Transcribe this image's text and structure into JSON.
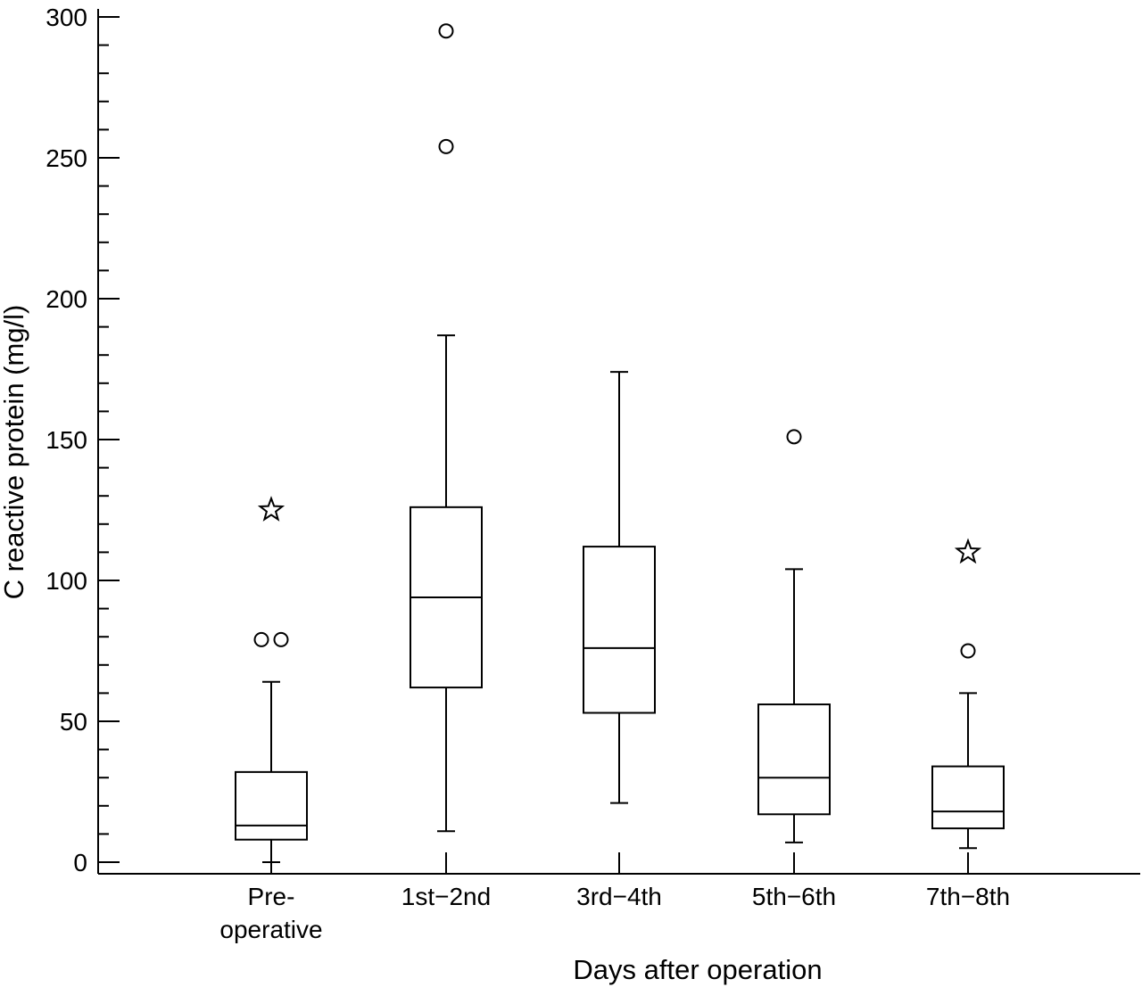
{
  "chart_data": {
    "type": "box",
    "xlabel": "Days after operation",
    "ylabel": "C reactive protein (mg/l)",
    "ylim": [
      0,
      300
    ],
    "yticks": [
      "0",
      "50",
      "100",
      "150",
      "200",
      "250",
      "300"
    ],
    "categories": [
      {
        "label": [
          "Pre-",
          "operative"
        ],
        "whisker_low": 0,
        "q1": 8,
        "median": 13,
        "q3": 32,
        "whisker_high": 64,
        "outliers": [
          {
            "value": 79,
            "offset": -1
          },
          {
            "value": 79,
            "offset": 1
          }
        ],
        "extremes": [
          125
        ]
      },
      {
        "label": [
          "1st−2nd"
        ],
        "whisker_low": 11,
        "q1": 62,
        "median": 94,
        "q3": 126,
        "whisker_high": 187,
        "outliers": [
          {
            "value": 254,
            "offset": 0
          },
          {
            "value": 295,
            "offset": 0
          }
        ],
        "extremes": []
      },
      {
        "label": [
          "3rd−4th"
        ],
        "whisker_low": 21,
        "q1": 53,
        "median": 76,
        "q3": 112,
        "whisker_high": 174,
        "outliers": [],
        "extremes": []
      },
      {
        "label": [
          "5th−6th"
        ],
        "whisker_low": 7,
        "q1": 17,
        "median": 30,
        "q3": 56,
        "whisker_high": 104,
        "outliers": [
          {
            "value": 151,
            "offset": 0
          }
        ],
        "extremes": []
      },
      {
        "label": [
          "7th−8th"
        ],
        "whisker_low": 5,
        "q1": 12,
        "median": 18,
        "q3": 34,
        "whisker_high": 60,
        "outliers": [
          {
            "value": 75,
            "offset": 0
          }
        ],
        "extremes": [
          110
        ]
      }
    ]
  }
}
